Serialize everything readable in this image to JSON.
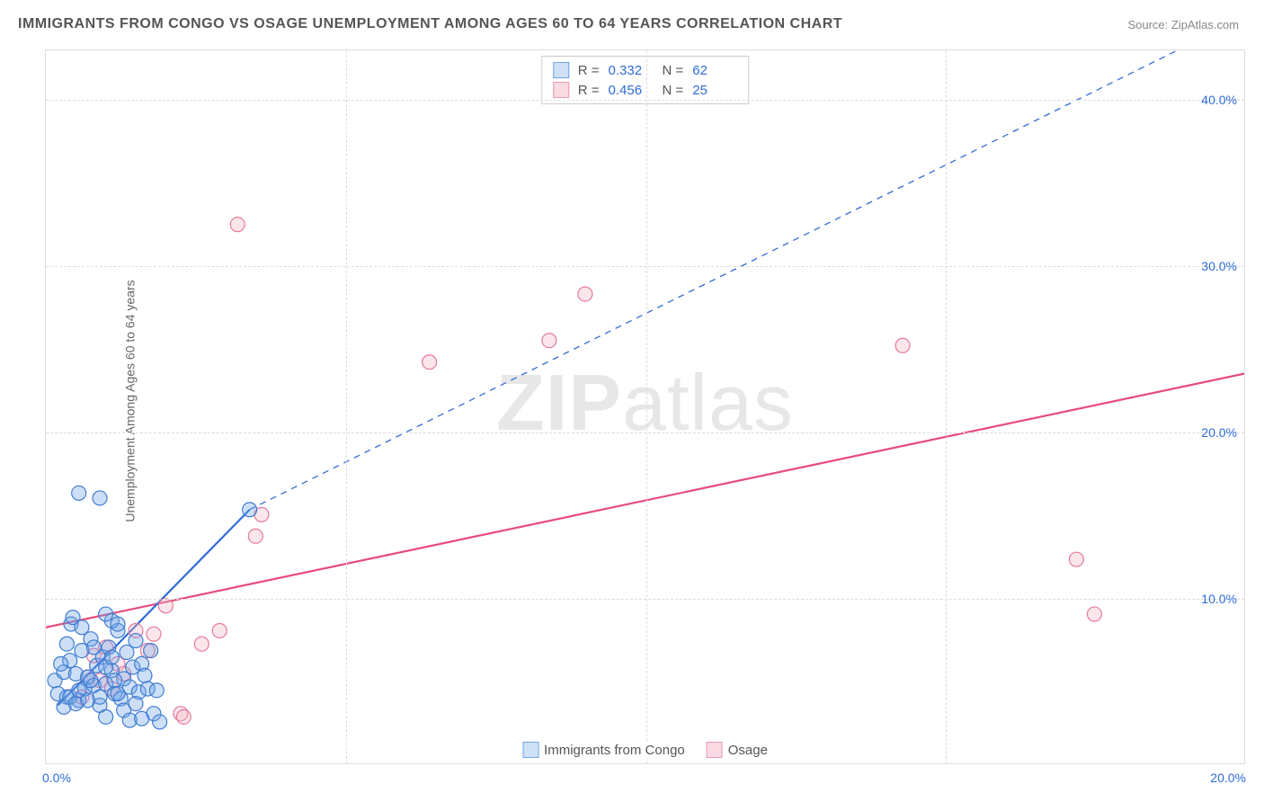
{
  "title": "IMMIGRANTS FROM CONGO VS OSAGE UNEMPLOYMENT AMONG AGES 60 TO 64 YEARS CORRELATION CHART",
  "source": "Source: ZipAtlas.com",
  "watermark_bold": "ZIP",
  "watermark_rest": "atlas",
  "ylabel": "Unemployment Among Ages 60 to 64 years",
  "chart": {
    "type": "scatter",
    "background_color": "#ffffff",
    "grid_color": "#dddddd",
    "xlim": [
      0,
      20
    ],
    "ylim": [
      0,
      43
    ],
    "xtick_labels": [
      "0.0%",
      "20.0%"
    ],
    "ytick_step": 10,
    "ytick_labels": [
      "10.0%",
      "20.0%",
      "30.0%",
      "40.0%"
    ],
    "marker_radius": 8,
    "marker_fill_opacity": 0.35,
    "series": [
      {
        "name": "Immigrants from Congo",
        "color": "#6fa4e8",
        "stroke": "#3f7cd1",
        "R": "0.332",
        "N": "62",
        "trend": {
          "style": "segmented",
          "x1": 0.2,
          "y1": 3.5,
          "x2": 3.4,
          "y2": 15.3,
          "x3": 20,
          "y3": 45,
          "solid_end_x": 3.4,
          "line_color": "#2e6bd6",
          "line_width_solid": 2.2,
          "line_width_dash": 1.3
        },
        "points": [
          [
            0.15,
            5.0
          ],
          [
            0.2,
            4.2
          ],
          [
            0.3,
            5.5
          ],
          [
            0.35,
            4.0
          ],
          [
            0.4,
            6.2
          ],
          [
            0.42,
            8.4
          ],
          [
            0.5,
            5.4
          ],
          [
            0.55,
            3.8
          ],
          [
            0.6,
            6.8
          ],
          [
            0.65,
            4.5
          ],
          [
            0.7,
            5.2
          ],
          [
            0.75,
            7.5
          ],
          [
            0.8,
            4.7
          ],
          [
            0.85,
            5.9
          ],
          [
            0.9,
            3.5
          ],
          [
            0.95,
            6.4
          ],
          [
            1.0,
            4.8
          ],
          [
            1.05,
            7.0
          ],
          [
            1.1,
            5.6
          ],
          [
            1.15,
            4.2
          ],
          [
            1.2,
            8.0
          ],
          [
            1.25,
            3.9
          ],
          [
            1.3,
            5.1
          ],
          [
            1.35,
            6.7
          ],
          [
            1.4,
            4.6
          ],
          [
            1.45,
            5.8
          ],
          [
            1.5,
            7.4
          ],
          [
            1.55,
            4.3
          ],
          [
            1.6,
            6.0
          ],
          [
            1.65,
            5.3
          ],
          [
            1.7,
            4.5
          ],
          [
            1.75,
            6.8
          ],
          [
            1.8,
            3.0
          ],
          [
            1.85,
            4.4
          ],
          [
            1.9,
            2.5
          ],
          [
            1.0,
            2.8
          ],
          [
            1.1,
            8.6
          ],
          [
            1.3,
            3.2
          ],
          [
            0.55,
            16.3
          ],
          [
            0.9,
            16.0
          ],
          [
            0.45,
            8.8
          ],
          [
            0.6,
            8.2
          ],
          [
            1.0,
            9.0
          ],
          [
            1.2,
            8.4
          ],
          [
            1.4,
            2.6
          ],
          [
            1.5,
            3.6
          ],
          [
            1.6,
            2.7
          ],
          [
            0.3,
            3.4
          ],
          [
            0.4,
            4.0
          ],
          [
            0.25,
            6.0
          ],
          [
            0.35,
            7.2
          ],
          [
            0.5,
            3.6
          ],
          [
            0.55,
            4.4
          ],
          [
            0.7,
            3.8
          ],
          [
            0.75,
            5.0
          ],
          [
            0.8,
            7.0
          ],
          [
            0.9,
            4.0
          ],
          [
            1.0,
            5.8
          ],
          [
            1.1,
            6.4
          ],
          [
            1.15,
            5.0
          ],
          [
            1.2,
            4.2
          ],
          [
            3.4,
            15.3
          ]
        ]
      },
      {
        "name": "Osage",
        "color": "#f2b8c6",
        "stroke": "#e67a9a",
        "R": "0.456",
        "N": "25",
        "trend": {
          "style": "solid",
          "x1": 0,
          "y1": 8.2,
          "x2": 20,
          "y2": 23.5,
          "line_color": "#e84b7a",
          "line_width": 2.2
        },
        "points": [
          [
            0.6,
            4.0
          ],
          [
            0.7,
            5.2
          ],
          [
            0.8,
            6.5
          ],
          [
            0.9,
            5.0
          ],
          [
            1.0,
            7.0
          ],
          [
            1.1,
            4.5
          ],
          [
            1.2,
            6.0
          ],
          [
            1.3,
            5.4
          ],
          [
            1.5,
            8.0
          ],
          [
            1.7,
            6.8
          ],
          [
            1.8,
            7.8
          ],
          [
            2.0,
            9.5
          ],
          [
            2.25,
            3.0
          ],
          [
            2.3,
            2.8
          ],
          [
            2.6,
            7.2
          ],
          [
            2.9,
            8.0
          ],
          [
            3.5,
            13.7
          ],
          [
            3.6,
            15.0
          ],
          [
            3.2,
            32.5
          ],
          [
            6.4,
            24.2
          ],
          [
            8.4,
            25.5
          ],
          [
            9.0,
            28.3
          ],
          [
            14.3,
            25.2
          ],
          [
            17.2,
            12.3
          ],
          [
            17.5,
            9.0
          ]
        ]
      }
    ]
  },
  "legend": {
    "s1": "Immigrants from Congo",
    "s2": "Osage"
  }
}
